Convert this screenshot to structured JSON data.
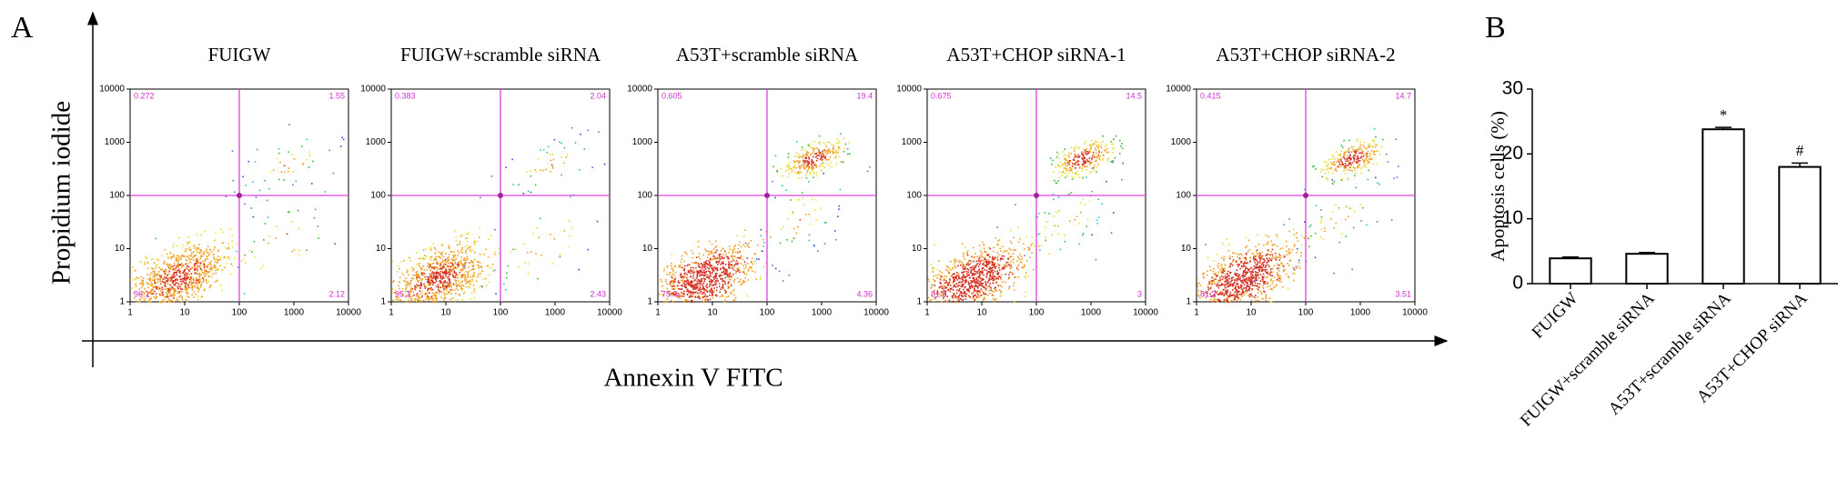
{
  "panel_a": {
    "label": "A",
    "y_label": "Propidium iodide",
    "x_label": "Annexin V FITC",
    "log_scale": true,
    "xticks": [
      1,
      10,
      100,
      1000,
      10000
    ],
    "yticks": [
      1,
      10,
      100,
      1000,
      10000
    ],
    "plots": [
      {
        "title": "FUIGW",
        "quadrants": [
          "0.272",
          "1.55",
          "96.1",
          "2.12"
        ]
      },
      {
        "title": "FUIGW+scramble siRNA",
        "quadrants": [
          "0.383",
          "2.04",
          "95.1",
          "2.43"
        ]
      },
      {
        "title": "A53T+scramble siRNA",
        "quadrants": [
          "0.605",
          "19.4",
          "75.6",
          "4.36"
        ]
      },
      {
        "title": "A53T+CHOP siRNA-1",
        "quadrants": [
          "0.675",
          "14.5",
          "81.8",
          "3"
        ]
      },
      {
        "title": "A53T+CHOP siRNA-2",
        "quadrants": [
          "0.415",
          "14.7",
          "81.3",
          "3.51"
        ]
      }
    ]
  },
  "chart_data": {
    "type": "bar",
    "panel_label": "B",
    "y_label": "Apoptosis cells (%)",
    "categories": [
      "FUIGW",
      "FUIGW+scramble siRNA",
      "A53T+scramble siRNA",
      "A53T+CHOP siRNA"
    ],
    "values": [
      3.9,
      4.6,
      23.8,
      18.0
    ],
    "errors": [
      0.2,
      0.2,
      0.3,
      0.6
    ],
    "markers": [
      null,
      null,
      "*",
      "#"
    ],
    "color": "#ffffff",
    "ylim": [
      0,
      30
    ],
    "yticks": [
      0,
      10,
      20,
      30
    ]
  }
}
